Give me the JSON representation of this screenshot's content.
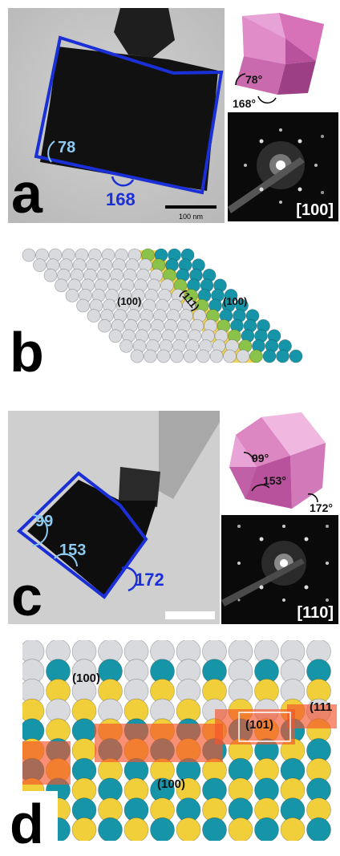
{
  "panel_a": {
    "letter": "a",
    "angle_light": "78",
    "angle_blue": "168",
    "scale_label": "100 nm",
    "model_angle_1": "78°",
    "model_angle_2": "168°",
    "diffraction_label": "[100]"
  },
  "panel_b": {
    "letter": "b",
    "facet_left": "(100)",
    "facet_mid": "(111)",
    "facet_right": "(100)"
  },
  "panel_c": {
    "letter": "c",
    "angle_1": "99",
    "angle_2": "153",
    "angle_3": "172",
    "model_angle_1": "99°",
    "model_angle_2": "153°",
    "model_angle_3": "172°",
    "diffraction_label": "[110]"
  },
  "panel_d": {
    "letter": "d",
    "facet_top": "(100)",
    "facet_mid": "(101)",
    "facet_right": "(111",
    "facet_bottom": "(100)"
  },
  "colors": {
    "outline_blue": "#1b2fd6",
    "angle_light_blue": "#8ec9ef",
    "teal_atom": "#1795a8",
    "yellow_atom": "#f1cf3a",
    "grey_atom": "#d9dade",
    "pink_model": "#d872b8",
    "orange_highlight": "#f2552a"
  }
}
